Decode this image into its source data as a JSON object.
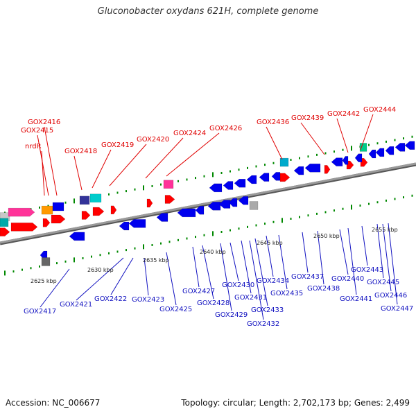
{
  "title": "Gluconobacter oxydans 621H, complete genome",
  "accession": "Accession: NC_006677",
  "summary": "Topology: circular; Length: 2,702,173 bp; Genes: 2,499",
  "colors": {
    "forward_gene": "#ff0000",
    "reverse_gene": "#0000ee",
    "backbone": "#888888",
    "top_label": "#e00000",
    "bottom_label": "#1010c0",
    "tick": "#008800"
  },
  "kbp_labels": [
    "2625 kbp",
    "2630 kbp",
    "2635 kbp",
    "2640 kbp",
    "2645 kbp",
    "2650 kbp",
    "2655 kbp"
  ],
  "top_genes": [
    "nrdR",
    "GOX2415",
    "GOX2416",
    "GOX2418",
    "GOX2419",
    "GOX2420",
    "GOX2424",
    "GOX2426",
    "GOX2436",
    "GOX2439",
    "GOX2442",
    "GOX2444"
  ],
  "bottom_genes": [
    "GOX2417",
    "GOX2421",
    "GOX2422",
    "GOX2423",
    "GOX2425",
    "GOX2427",
    "GOX2428",
    "GOX2429",
    "GOX2430",
    "GOX2431",
    "GOX2432",
    "GOX2433",
    "GOX2434",
    "GOX2435",
    "GOX2437",
    "GOX2438",
    "GOX2440",
    "GOX2441",
    "GOX2443",
    "GOX2445",
    "GOX2446",
    "GOX2447"
  ]
}
